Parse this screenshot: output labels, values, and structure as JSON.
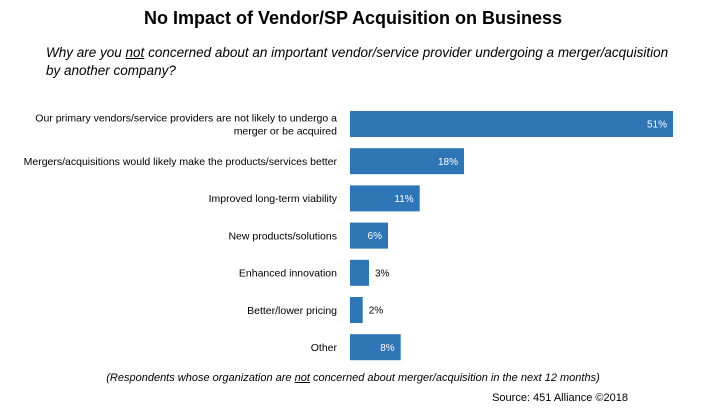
{
  "title": "No Impact of Vendor/SP Acquisition on Business",
  "question": {
    "before": "Why are you ",
    "emphasis": "not",
    "after": " concerned about an important vendor/service provider undergoing a merger/acquisition by another company?"
  },
  "footnote": {
    "before": "(Respondents whose organization are ",
    "emphasis": "not",
    "after": " concerned about merger/acquisition in the next 12 months)"
  },
  "source": "Source: 451 Alliance ©2018",
  "colors": {
    "bar": "#2e75b6",
    "label_inside": "#ffffff",
    "label_outside": "#000000"
  },
  "chart_data": {
    "type": "bar",
    "orientation": "horizontal",
    "categories": [
      "Our primary vendors/service providers are not likely to undergo a merger or be acquired",
      "Mergers/acquisitions would likely make the products/services better",
      "Improved long-term viability",
      "New products/solutions",
      "Enhanced innovation",
      "Better/lower pricing",
      "Other"
    ],
    "category_lines": [
      [
        "Our primary vendors/service providers are not likely to undergo a",
        "merger or be acquired"
      ],
      [
        "Mergers/acquisitions would likely make the products/services better"
      ],
      [
        "Improved long-term viability"
      ],
      [
        "New products/solutions"
      ],
      [
        "Enhanced innovation"
      ],
      [
        "Better/lower pricing"
      ],
      [
        "Other"
      ]
    ],
    "values": [
      51,
      18,
      11,
      6,
      3,
      2,
      8
    ],
    "data_labels": [
      "51%",
      "18%",
      "11%",
      "6%",
      "3%",
      "2%",
      "8%"
    ],
    "unit": "%",
    "xlim": [
      0,
      51
    ],
    "grid": false,
    "legend": "none"
  }
}
